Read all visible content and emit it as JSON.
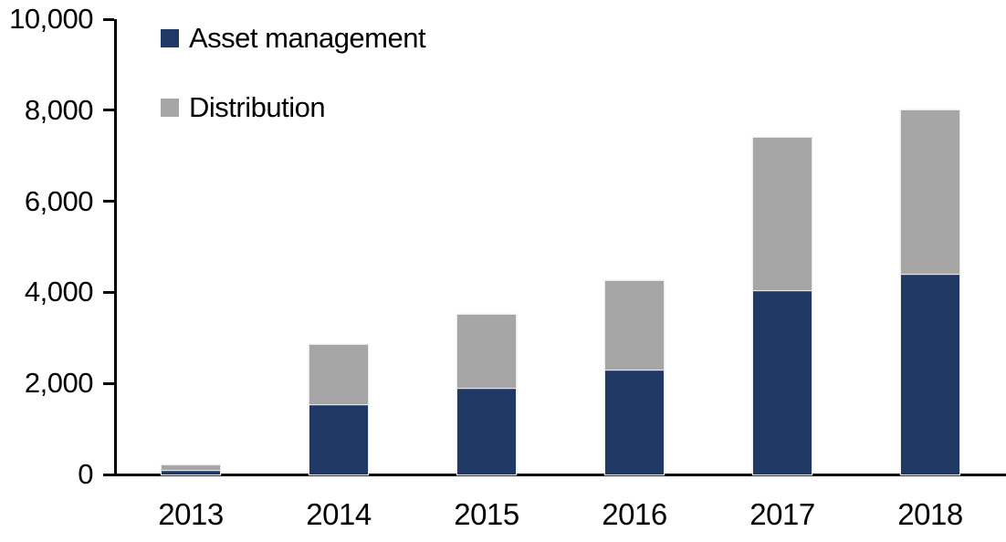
{
  "chart_data": {
    "type": "bar",
    "stacked": true,
    "title": "",
    "categories": [
      "2013",
      "2014",
      "2015",
      "2016",
      "2017",
      "2018"
    ],
    "series": [
      {
        "name": "Asset management",
        "color": "#1F3864",
        "values": [
          100,
          1550,
          1900,
          2300,
          4050,
          4400
        ]
      },
      {
        "name": "Distribution",
        "color": "#A6A6A6",
        "values": [
          100,
          1300,
          1600,
          1950,
          3350,
          3600
        ]
      }
    ],
    "totals": [
      200,
      2850,
      3500,
      4250,
      7400,
      8000
    ],
    "xlabel": "",
    "ylabel": "",
    "ylim": [
      0,
      10000
    ],
    "y_ticks": [
      {
        "value": 0,
        "label": "0"
      },
      {
        "value": 2000,
        "label": "2,000"
      },
      {
        "value": 4000,
        "label": "4,000"
      },
      {
        "value": 6000,
        "label": "6,000"
      },
      {
        "value": 8000,
        "label": "8,000"
      },
      {
        "value": 10000,
        "label": "10,000"
      }
    ],
    "legend_position": "top-left",
    "grid": false,
    "axis_color": "#000000",
    "background_color": "#FFFFFF"
  }
}
